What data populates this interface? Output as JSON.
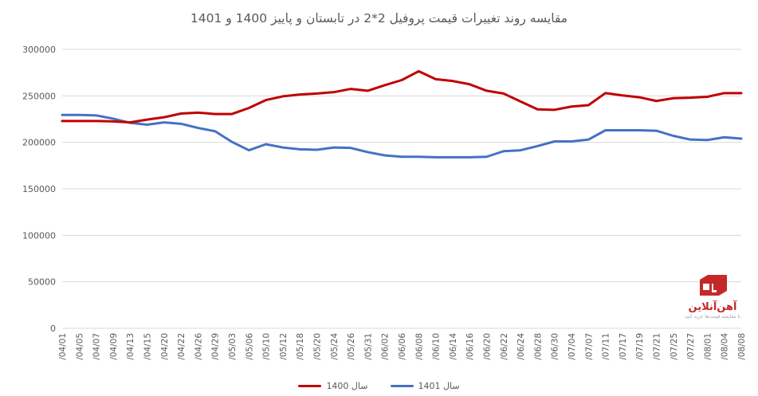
{
  "title": "مقایسه روند تغییرات قیمت پروفیل 2*2 در تابستان و پاییز 1400 و 1401",
  "colors": {
    "series_1400": "#c00000",
    "series_1401": "#4472c4",
    "grid": "#d9d9d9",
    "axis_text": "#595959",
    "title_text": "#595959",
    "logo_red": "#c21d1d"
  },
  "legend": {
    "items": [
      {
        "label": "سال 1400",
        "series": 0
      },
      {
        "label": "سال 1401",
        "series": 1
      }
    ]
  },
  "logo": {
    "icon": "ahan-online-box-logo",
    "name": "آهن‌آنلاین",
    "tagline": "با مقایسه قیمت‌ها خرید کنید"
  },
  "chart_data": {
    "type": "line",
    "title": "مقایسه روند تغییرات قیمت پروفیل 2*2 در تابستان و پاییز 1400 و 1401",
    "xlabel": "",
    "ylabel": "",
    "ylim": [
      0,
      300000
    ],
    "yticks": [
      0,
      50000,
      100000,
      150000,
      200000,
      250000,
      300000
    ],
    "grid": "horizontal",
    "legend_position": "bottom",
    "categories": [
      "/04/01",
      "/04/05",
      "/04/07",
      "/04/09",
      "/04/13",
      "/04/15",
      "/04/20",
      "/04/22",
      "/04/26",
      "/04/29",
      "/05/03",
      "/05/06",
      "/05/10",
      "/05/12",
      "/05/18",
      "/05/20",
      "/05/24",
      "/05/26",
      "/05/31",
      "/06/02",
      "/06/06",
      "/06/08",
      "/06/10",
      "/06/14",
      "/06/16",
      "/06/20",
      "/06/22",
      "/06/24",
      "/06/28",
      "/06/30",
      "/07/04",
      "/07/07",
      "/07/11",
      "/07/17",
      "/07/19",
      "/07/21",
      "/07/25",
      "/07/27",
      "/08/01",
      "/08/04",
      "/08/08"
    ],
    "series": [
      {
        "name": "سال 1400",
        "color": "#c00000",
        "values": [
          223000,
          223000,
          223000,
          222500,
          221500,
          224500,
          227000,
          231000,
          232000,
          230500,
          230500,
          237000,
          245500,
          249500,
          251500,
          252500,
          254000,
          257500,
          255500,
          261500,
          267000,
          276500,
          268000,
          266000,
          262500,
          255500,
          252500,
          244000,
          235500,
          235000,
          238500,
          240000,
          253000,
          250500,
          248500,
          244500,
          247500,
          248000,
          249000,
          253000,
          253000
        ]
      },
      {
        "name": "سال 1401",
        "color": "#4472c4",
        "values": [
          229500,
          229500,
          229000,
          225500,
          221000,
          219000,
          221500,
          220000,
          215500,
          212000,
          200500,
          191500,
          198000,
          194500,
          192500,
          192000,
          194500,
          194000,
          189500,
          186000,
          184500,
          184500,
          184000,
          184000,
          184000,
          184500,
          190500,
          191500,
          196000,
          201000,
          201000,
          203000,
          213000,
          213000,
          213000,
          212500,
          207000,
          203000,
          202500,
          205500,
          204000
        ]
      }
    ]
  }
}
